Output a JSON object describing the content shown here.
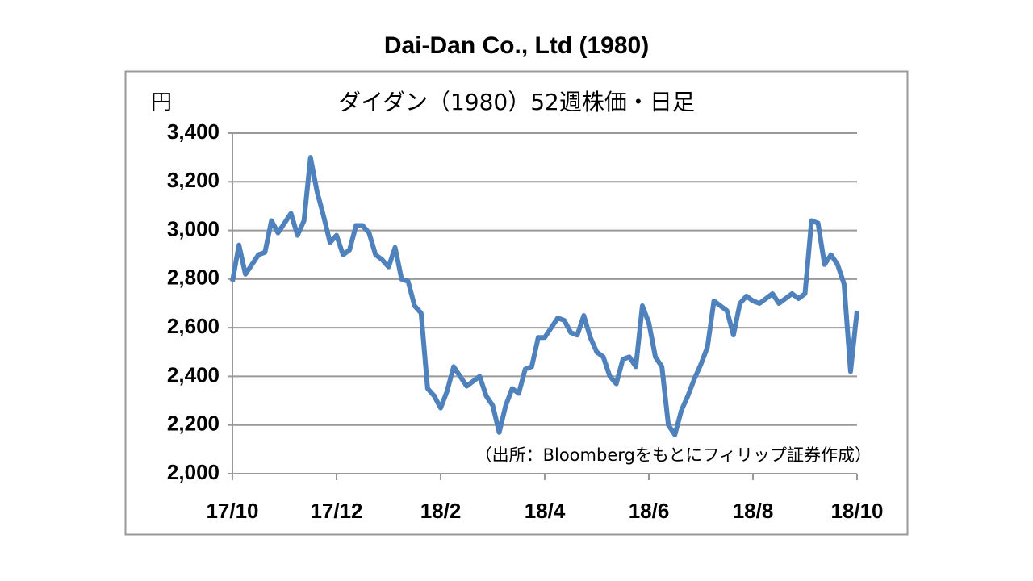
{
  "chart_data": {
    "type": "line",
    "title": "Dai-Dan Co., Ltd (1980)",
    "subtitle": "ダイダン（1980）52週株価・日足",
    "y_label": "円",
    "annotation": "（出所：Bloombergをもとにフィリップ証券作成）",
    "categories": [
      "17/10",
      null,
      null,
      null,
      null,
      null,
      null,
      null,
      null,
      null,
      null,
      null,
      null,
      null,
      null,
      null,
      "17/12",
      null,
      null,
      null,
      null,
      null,
      null,
      null,
      null,
      null,
      null,
      null,
      null,
      null,
      null,
      null,
      "18/2",
      null,
      null,
      null,
      null,
      null,
      null,
      null,
      null,
      null,
      null,
      null,
      null,
      null,
      null,
      null,
      "18/4",
      null,
      null,
      null,
      null,
      null,
      null,
      null,
      null,
      null,
      null,
      null,
      null,
      null,
      null,
      null,
      "18/6",
      null,
      null,
      null,
      null,
      null,
      null,
      null,
      null,
      null,
      null,
      null,
      null,
      null,
      null,
      null,
      "18/8",
      null,
      null,
      null,
      null,
      null,
      null,
      null,
      null,
      null,
      null,
      null,
      null,
      null,
      null,
      null,
      "18/10"
    ],
    "series": [
      {
        "name": "ダイダン",
        "color": "#4f81bd",
        "values": [
          2790,
          2940,
          2820,
          2860,
          2900,
          2910,
          3040,
          2990,
          3030,
          3070,
          2980,
          3040,
          3300,
          3160,
          3060,
          2950,
          2980,
          2900,
          2920,
          3020,
          3020,
          2990,
          2900,
          2880,
          2850,
          2930,
          2800,
          2790,
          2690,
          2660,
          2350,
          2320,
          2270,
          2340,
          2440,
          2400,
          2360,
          2380,
          2400,
          2320,
          2280,
          2170,
          2280,
          2350,
          2330,
          2430,
          2440,
          2560,
          2560,
          2600,
          2640,
          2630,
          2580,
          2570,
          2650,
          2560,
          2500,
          2480,
          2400,
          2370,
          2470,
          2480,
          2440,
          2690,
          2620,
          2480,
          2440,
          2200,
          2160,
          2260,
          2320,
          2390,
          2450,
          2520,
          2710,
          2690,
          2670,
          2570,
          2700,
          2730,
          2710,
          2700,
          2720,
          2740,
          2700,
          2720,
          2740,
          2720,
          2740,
          3040,
          3030,
          2860,
          2900,
          2860,
          2780,
          2420,
          2670
        ]
      }
    ],
    "ylim": [
      2000,
      3400
    ],
    "yticks": [
      {
        "value": 2000,
        "label": "2,000"
      },
      {
        "value": 2200,
        "label": "2,200"
      },
      {
        "value": 2400,
        "label": "2,400"
      },
      {
        "value": 2600,
        "label": "2,600"
      },
      {
        "value": 2800,
        "label": "2,800"
      },
      {
        "value": 3000,
        "label": "3,000"
      },
      {
        "value": 3200,
        "label": "3,200"
      },
      {
        "value": 3400,
        "label": "3,400"
      }
    ],
    "grid": true
  }
}
